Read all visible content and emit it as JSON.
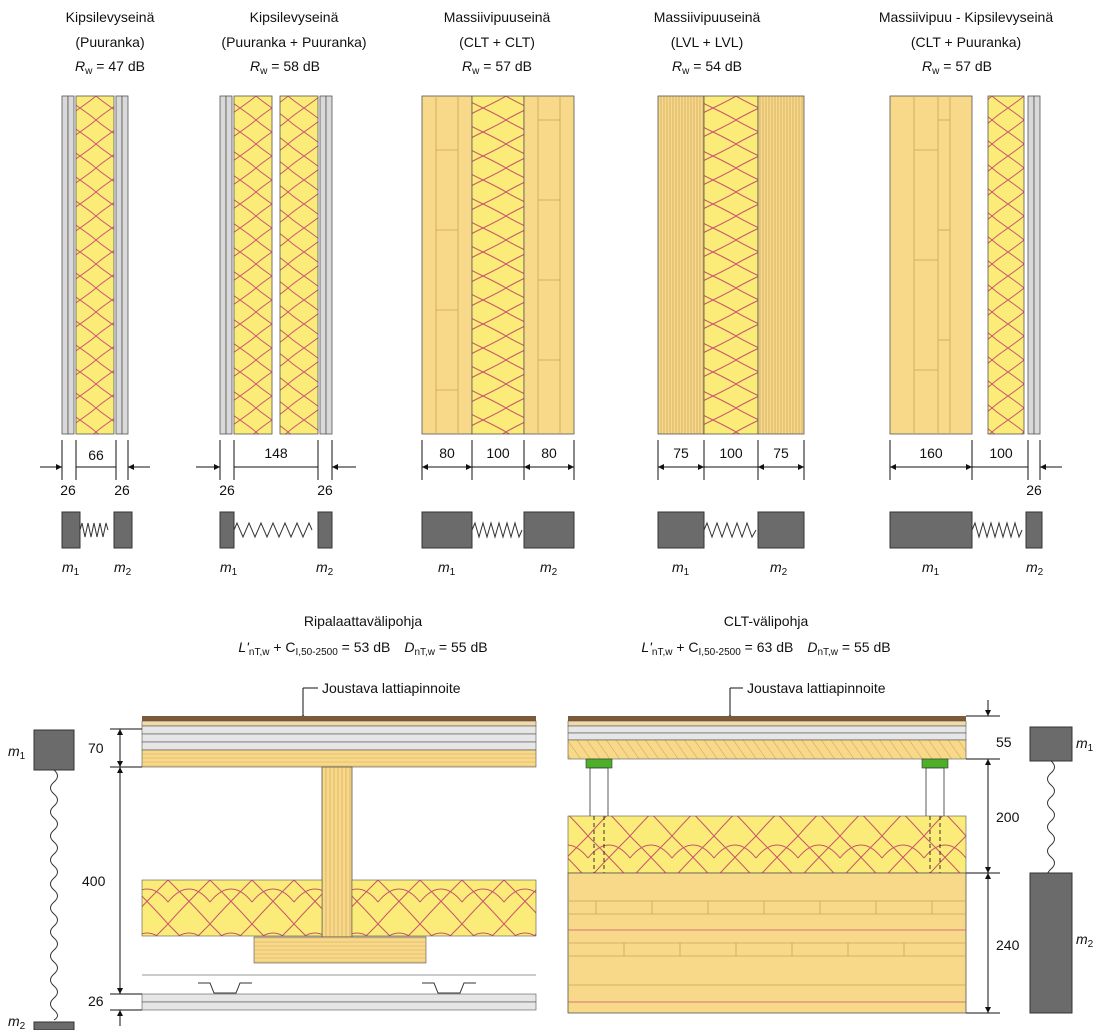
{
  "palette": {
    "wood": "#f8d98a",
    "wood_line": "#c9a25a",
    "insulation": "#fbeb78",
    "insulation_line": "#c8556a",
    "gypsum": "#d9d9d9",
    "mass": "#6b6b6b",
    "flooring_top": "#7a5a3a",
    "green_bearing": "#4caf2a"
  },
  "walls": [
    {
      "title1": "Kipsilevyseinä",
      "title2": "(Puuranka)",
      "rating": "47 dB",
      "dims_top": [
        "66"
      ],
      "dims_bottom": [
        "26",
        "26"
      ],
      "m1": "1",
      "m2": "2"
    },
    {
      "title1": "Kipsilevyseinä",
      "title2": "(Puuranka + Puuranka)",
      "rating": "58 dB",
      "dims_top": [
        "148"
      ],
      "dims_bottom": [
        "26",
        "26"
      ],
      "m1": "1",
      "m2": "2"
    },
    {
      "title1": "Massiivipuuseinä",
      "title2": "(CLT + CLT)",
      "rating": "57 dB",
      "dims_top": [
        "80",
        "100",
        "80"
      ],
      "dims_bottom": [],
      "m1": "1",
      "m2": "2"
    },
    {
      "title1": "Massiivipuuseinä",
      "title2": "(LVL + LVL)",
      "rating": "54 dB",
      "dims_top": [
        "75",
        "100",
        "75"
      ],
      "dims_bottom": [],
      "m1": "1",
      "m2": "2"
    },
    {
      "title1": "Massiivipuu - Kipsilevyseinä",
      "title2": "(CLT + Puuranka)",
      "rating": "57 dB",
      "dims_top": [
        "160",
        "100"
      ],
      "dims_bottom": [
        "26"
      ],
      "m1": "1",
      "m2": "2"
    }
  ],
  "rw_symbol": "R",
  "rw_sub": "w",
  "rw_eq": " = ",
  "m_symbol": "m",
  "floors": [
    {
      "title": "Ripalaattavälipohja",
      "L_symbol": "L'",
      "L_sub": "nT,w",
      "plus_c": " + C",
      "c_sub": "I,50-2500",
      "L_value": " = 53 dB",
      "D_symbol": "D",
      "D_sub": "nT,w",
      "D_value": " = 55 dB",
      "callout": "Joustava lattiapinnoite",
      "dims": [
        "70",
        "400",
        "26"
      ]
    },
    {
      "title": "CLT-välipohja",
      "L_symbol": "L'",
      "L_sub": "nT,w",
      "plus_c": " + C",
      "c_sub": "I,50-2500",
      "L_value": " = 63 dB",
      "D_symbol": "D",
      "D_sub": "nT,w",
      "D_value": " = 55 dB",
      "callout": "Joustava lattiapinnoite",
      "dims": [
        "55",
        "200",
        "240"
      ]
    }
  ]
}
